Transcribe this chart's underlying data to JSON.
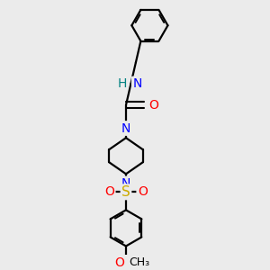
{
  "background_color": "#ebebeb",
  "bond_color": "#000000",
  "N_color": "#0000ff",
  "O_color": "#ff0000",
  "S_color": "#ccaa00",
  "H_color": "#008080",
  "line_width": 1.6,
  "figsize": [
    3.0,
    3.0
  ],
  "dpi": 100,
  "xlim": [
    -1.5,
    1.5
  ],
  "ylim": [
    -4.2,
    3.5
  ]
}
